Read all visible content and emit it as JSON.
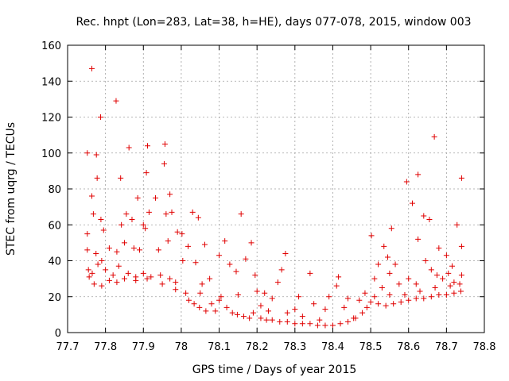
{
  "chart_data": {
    "type": "scatter",
    "title": "Rec. hnpt (Lon=283, Lat=38, h=HE), days 077-078, 2015, window 003",
    "xlabel": "GPS time / Days of year 2015",
    "ylabel": "STEC from uqrg / TECUs",
    "xlim": [
      77.7,
      78.8
    ],
    "ylim": [
      0,
      160
    ],
    "xticks": [
      "77.7",
      "77.8",
      "77.9",
      "78",
      "78.1",
      "78.2",
      "78.3",
      "78.4",
      "78.5",
      "78.6",
      "78.7",
      "78.8"
    ],
    "yticks": [
      "0",
      "20",
      "40",
      "60",
      "80",
      "100",
      "120",
      "140",
      "160"
    ],
    "grid": true,
    "marker": "+",
    "color": "#e00000",
    "series": [
      {
        "points": [
          [
            77.752,
            100
          ],
          [
            77.764,
            147
          ],
          [
            77.776,
            99
          ],
          [
            77.787,
            120
          ],
          [
            77.828,
            129
          ],
          [
            77.862,
            103
          ],
          [
            77.911,
            104
          ],
          [
            77.957,
            105
          ],
          [
            77.778,
            86
          ],
          [
            77.84,
            86
          ],
          [
            77.908,
            89
          ],
          [
            77.955,
            94
          ],
          [
            77.885,
            75
          ],
          [
            77.932,
            75
          ],
          [
            77.97,
            77
          ],
          [
            77.764,
            76
          ],
          [
            77.768,
            66
          ],
          [
            77.752,
            55
          ],
          [
            77.788,
            63
          ],
          [
            77.795,
            57
          ],
          [
            77.81,
            47
          ],
          [
            77.842,
            60
          ],
          [
            77.855,
            66
          ],
          [
            77.87,
            63
          ],
          [
            77.9,
            60
          ],
          [
            77.915,
            67
          ],
          [
            77.96,
            66
          ],
          [
            77.975,
            67
          ],
          [
            77.99,
            56
          ],
          [
            77.752,
            46
          ],
          [
            77.775,
            44
          ],
          [
            77.79,
            40
          ],
          [
            77.83,
            45
          ],
          [
            77.85,
            50
          ],
          [
            77.875,
            47
          ],
          [
            77.89,
            46
          ],
          [
            77.905,
            58
          ],
          [
            77.94,
            46
          ],
          [
            77.965,
            51
          ],
          [
            77.755,
            35
          ],
          [
            77.765,
            33
          ],
          [
            77.78,
            38
          ],
          [
            77.8,
            35
          ],
          [
            77.82,
            32
          ],
          [
            77.835,
            37
          ],
          [
            77.86,
            33
          ],
          [
            77.88,
            31
          ],
          [
            77.9,
            33
          ],
          [
            77.92,
            31
          ],
          [
            77.945,
            32
          ],
          [
            77.97,
            30
          ],
          [
            77.985,
            28
          ],
          [
            77.757,
            31
          ],
          [
            77.77,
            27
          ],
          [
            77.79,
            26
          ],
          [
            77.81,
            29
          ],
          [
            77.83,
            28
          ],
          [
            77.85,
            30
          ],
          [
            77.88,
            29
          ],
          [
            77.91,
            30
          ],
          [
            77.95,
            27
          ],
          [
            77.985,
            24
          ],
          [
            78.002,
            55
          ],
          [
            78.03,
            67
          ],
          [
            78.045,
            64
          ],
          [
            78.018,
            48
          ],
          [
            78.062,
            49
          ],
          [
            78.004,
            40
          ],
          [
            78.038,
            39
          ],
          [
            78.055,
            27
          ],
          [
            78.075,
            30
          ],
          [
            78.1,
            43
          ],
          [
            78.115,
            51
          ],
          [
            78.128,
            38
          ],
          [
            78.158,
            66
          ],
          [
            78.145,
            34
          ],
          [
            78.17,
            41
          ],
          [
            78.185,
            50
          ],
          [
            78.195,
            32
          ],
          [
            78.012,
            22
          ],
          [
            78.02,
            18
          ],
          [
            78.034,
            16
          ],
          [
            78.048,
            14
          ],
          [
            78.065,
            12
          ],
          [
            78.08,
            16
          ],
          [
            78.09,
            12
          ],
          [
            78.105,
            20
          ],
          [
            78.12,
            14
          ],
          [
            78.135,
            11
          ],
          [
            78.148,
            10
          ],
          [
            78.165,
            9
          ],
          [
            78.18,
            8
          ],
          [
            78.19,
            11
          ],
          [
            78.05,
            22
          ],
          [
            78.1,
            18
          ],
          [
            78.15,
            21
          ],
          [
            78.2,
            23
          ],
          [
            78.21,
            15
          ],
          [
            78.22,
            22
          ],
          [
            78.23,
            12
          ],
          [
            78.24,
            19
          ],
          [
            78.255,
            28
          ],
          [
            78.265,
            35
          ],
          [
            78.275,
            44
          ],
          [
            78.28,
            11
          ],
          [
            78.3,
            13
          ],
          [
            78.31,
            20
          ],
          [
            78.32,
            9
          ],
          [
            78.34,
            33
          ],
          [
            78.35,
            16
          ],
          [
            78.365,
            7
          ],
          [
            78.38,
            13
          ],
          [
            78.39,
            20
          ],
          [
            78.41,
            26
          ],
          [
            78.415,
            31
          ],
          [
            78.43,
            14
          ],
          [
            78.44,
            19
          ],
          [
            78.455,
            8
          ],
          [
            78.47,
            18
          ],
          [
            78.485,
            22
          ],
          [
            78.21,
            8
          ],
          [
            78.225,
            7
          ],
          [
            78.24,
            7
          ],
          [
            78.26,
            6
          ],
          [
            78.28,
            6
          ],
          [
            78.3,
            5
          ],
          [
            78.32,
            5
          ],
          [
            78.34,
            5
          ],
          [
            78.36,
            4
          ],
          [
            78.38,
            4
          ],
          [
            78.4,
            4
          ],
          [
            78.42,
            5
          ],
          [
            78.44,
            6
          ],
          [
            78.46,
            8
          ],
          [
            78.478,
            11
          ],
          [
            78.49,
            14
          ],
          [
            78.502,
            54
          ],
          [
            78.52,
            38
          ],
          [
            78.535,
            48
          ],
          [
            78.545,
            42
          ],
          [
            78.555,
            58
          ],
          [
            78.565,
            38
          ],
          [
            78.595,
            84
          ],
          [
            78.61,
            72
          ],
          [
            78.625,
            88
          ],
          [
            78.625,
            52
          ],
          [
            78.64,
            65
          ],
          [
            78.655,
            63
          ],
          [
            78.668,
            109
          ],
          [
            78.68,
            47
          ],
          [
            78.7,
            43
          ],
          [
            78.715,
            37
          ],
          [
            78.728,
            60
          ],
          [
            78.74,
            86
          ],
          [
            78.74,
            48
          ],
          [
            78.51,
            30
          ],
          [
            78.53,
            25
          ],
          [
            78.55,
            33
          ],
          [
            78.575,
            27
          ],
          [
            78.6,
            30
          ],
          [
            78.62,
            27
          ],
          [
            78.645,
            40
          ],
          [
            78.66,
            35
          ],
          [
            78.675,
            32
          ],
          [
            78.69,
            30
          ],
          [
            78.705,
            33
          ],
          [
            78.72,
            28
          ],
          [
            78.735,
            27
          ],
          [
            78.5,
            17
          ],
          [
            78.52,
            16
          ],
          [
            78.54,
            15
          ],
          [
            78.56,
            16
          ],
          [
            78.58,
            17
          ],
          [
            78.6,
            18
          ],
          [
            78.62,
            19
          ],
          [
            78.64,
            19
          ],
          [
            78.66,
            20
          ],
          [
            78.68,
            21
          ],
          [
            78.7,
            21
          ],
          [
            78.72,
            22
          ],
          [
            78.738,
            23
          ],
          [
            78.51,
            20
          ],
          [
            78.55,
            21
          ],
          [
            78.59,
            21
          ],
          [
            78.63,
            23
          ],
          [
            78.67,
            25
          ],
          [
            78.71,
            26
          ],
          [
            78.74,
            32
          ]
        ]
      }
    ]
  }
}
